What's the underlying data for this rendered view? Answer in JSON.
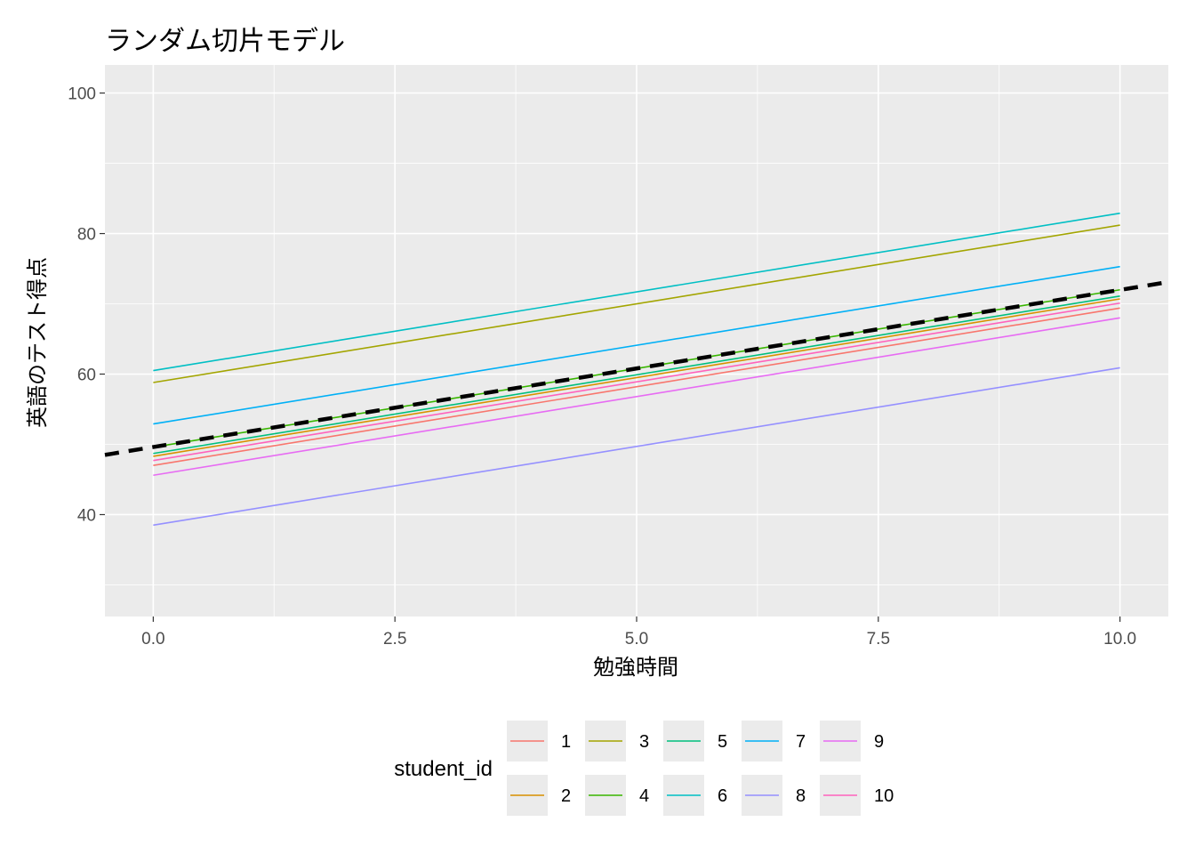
{
  "chart_data": {
    "type": "line",
    "title": "ランダム切片モデル",
    "xlabel": "勉強時間",
    "ylabel": "英語のテスト得点",
    "xlim": [
      -0.5,
      10.5
    ],
    "ylim": [
      25.5,
      104
    ],
    "x_ticks": [
      0.0,
      2.5,
      5.0,
      7.5,
      10.0
    ],
    "x_tick_labels": [
      "0.0",
      "2.5",
      "5.0",
      "7.5",
      "10.0"
    ],
    "y_ticks": [
      40,
      60,
      80,
      100
    ],
    "y_tick_labels": [
      "40",
      "60",
      "80",
      "100"
    ],
    "grid": true,
    "background": "#ebebeb",
    "legend": {
      "title": "student_id",
      "placement": "bottom"
    },
    "series": [
      {
        "name": "1",
        "color": "#F8766D",
        "x": [
          0,
          10
        ],
        "y": [
          47.0,
          69.4
        ]
      },
      {
        "name": "2",
        "color": "#D89000",
        "x": [
          0,
          10
        ],
        "y": [
          48.3,
          70.7
        ]
      },
      {
        "name": "3",
        "color": "#A3A500",
        "x": [
          0,
          10
        ],
        "y": [
          58.8,
          81.2
        ]
      },
      {
        "name": "4",
        "color": "#39B600",
        "x": [
          0,
          10
        ],
        "y": [
          49.6,
          72.0
        ]
      },
      {
        "name": "5",
        "color": "#00BF7D",
        "x": [
          0,
          10
        ],
        "y": [
          48.7,
          71.1
        ]
      },
      {
        "name": "6",
        "color": "#00BFC4",
        "x": [
          0,
          10
        ],
        "y": [
          60.5,
          82.9
        ]
      },
      {
        "name": "7",
        "color": "#00B0F6",
        "x": [
          0,
          10
        ],
        "y": [
          52.9,
          75.3
        ]
      },
      {
        "name": "8",
        "color": "#9590FF",
        "x": [
          0,
          10
        ],
        "y": [
          38.5,
          60.9
        ]
      },
      {
        "name": "9",
        "color": "#E76BF3",
        "x": [
          0,
          10
        ],
        "y": [
          45.6,
          68.0
        ]
      },
      {
        "name": "10",
        "color": "#FF62BC",
        "x": [
          0,
          10
        ],
        "y": [
          47.7,
          70.1
        ]
      }
    ],
    "reference_line": {
      "style": "dashed",
      "color": "#000000",
      "x": [
        -0.5,
        10.5
      ],
      "y": [
        48.5,
        73.1
      ]
    }
  }
}
